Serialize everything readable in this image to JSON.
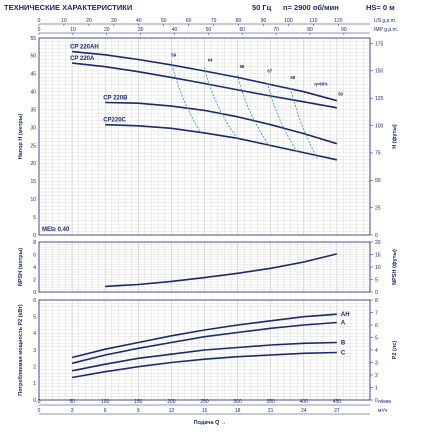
{
  "header": {
    "title": "ТЕХНИЧЕСКИЕ ХАРАКТЕРИСТИКИ",
    "freq": "50 Гц",
    "speed": "n= 2900 об/мин",
    "hs": "HS= 0 м"
  },
  "colors": {
    "curve": "#1a2a6c",
    "efficiency": "#3a9bd5",
    "grid": "#c8c8c8",
    "frame": "#1a2a6c"
  },
  "top_axes": {
    "units": [
      "л/мин"
    ],
    "scales": [
      {
        "unit": "US g.p.m.",
        "ticks": [
          "0",
          "10",
          "20",
          "30",
          "40",
          "50",
          "60",
          "70",
          "80",
          "90",
          "100",
          "110",
          "120"
        ]
      },
      {
        "unit": "IMP g.p.m.",
        "ticks": [
          "0",
          "10",
          "20",
          "30",
          "40",
          "50",
          "60",
          "70",
          "80",
          "90",
          "100"
        ]
      }
    ]
  },
  "bottom_axes": {
    "unit1": "л/мин",
    "unit2": "м³/ч",
    "xlabel": "Подача Q",
    "ticks_lmin": [
      "0",
      "50",
      "100",
      "150",
      "200",
      "250",
      "300",
      "350",
      "400",
      "450"
    ],
    "ticks_m3h": [
      "0",
      "3",
      "6",
      "9",
      "12",
      "15",
      "18",
      "21",
      "24",
      "27"
    ]
  },
  "chart_data": [
    {
      "type": "line",
      "title": "",
      "xlabel": "Подача Q",
      "ylabel": "Напор H (метры)",
      "y2label": "H (футы)",
      "xlim": [
        0,
        500
      ],
      "ylim": [
        0,
        55
      ],
      "y2lim": [
        0,
        180
      ],
      "y_ticks": [
        "0",
        "5",
        "10",
        "15",
        "20",
        "25",
        "30",
        "35",
        "40",
        "45",
        "50",
        "55"
      ],
      "y2_ticks": [
        "0",
        "25",
        "50",
        "75",
        "100",
        "125",
        "150",
        "175"
      ],
      "grid": true,
      "annotation": "MEI≥ 0.40",
      "series": [
        {
          "name": "CP 220AH",
          "x": [
            50,
            100,
            150,
            200,
            250,
            300,
            350,
            400,
            450
          ],
          "y": [
            51.2,
            50.3,
            49.0,
            47.5,
            45.8,
            44.0,
            42.0,
            40.0,
            37.5
          ]
        },
        {
          "name": "CP 220A",
          "x": [
            50,
            100,
            150,
            200,
            250,
            300,
            350,
            400,
            450
          ],
          "y": [
            48.0,
            47.0,
            45.6,
            44.0,
            42.3,
            40.5,
            38.8,
            37.2,
            35.5
          ]
        },
        {
          "name": "CP 220B",
          "x": [
            100,
            150,
            200,
            250,
            300,
            350,
            400,
            450
          ],
          "y": [
            37.0,
            36.8,
            36.0,
            34.8,
            33.0,
            30.8,
            28.3,
            25.5
          ]
        },
        {
          "name": "CP220C",
          "x": [
            100,
            150,
            200,
            250,
            300,
            350,
            400,
            450
          ],
          "y": [
            30.8,
            30.5,
            29.8,
            28.5,
            27.0,
            25.0,
            23.0,
            21.0
          ]
        }
      ],
      "efficiency_labels": [
        "59",
        "64",
        "58",
        "67",
        "58",
        "η=66%",
        "59"
      ]
    },
    {
      "type": "line",
      "title": "",
      "xlabel": "",
      "ylabel": "NPSH (метры)",
      "y2label": "NPSH (футы)",
      "xlim": [
        0,
        500
      ],
      "ylim": [
        0,
        8
      ],
      "y2lim": [
        0,
        20
      ],
      "y_ticks": [
        "0",
        "2",
        "4",
        "6",
        "8"
      ],
      "y2_ticks": [
        "0",
        "5",
        "10",
        "15",
        "20"
      ],
      "grid": true,
      "series": [
        {
          "name": "",
          "x": [
            100,
            150,
            200,
            250,
            300,
            350,
            400,
            450
          ],
          "y": [
            0.9,
            1.2,
            1.7,
            2.3,
            3.0,
            3.8,
            4.8,
            6.1
          ]
        }
      ]
    },
    {
      "type": "line",
      "title": "",
      "xlabel": "Подача Q",
      "ylabel": "Потребляемая мощность P2 (кВт)",
      "y2label": "P2 (лс)",
      "xlim": [
        0,
        500
      ],
      "ylim": [
        0,
        6
      ],
      "y2lim": [
        0,
        8
      ],
      "y_ticks": [
        "0",
        "1",
        "2",
        "3",
        "4",
        "5",
        "6"
      ],
      "y2_ticks": [
        "0",
        "1",
        "2",
        "3",
        "4",
        "5",
        "6",
        "7",
        "8"
      ],
      "grid": true,
      "series": [
        {
          "name": "AH",
          "x": [
            50,
            100,
            150,
            200,
            250,
            300,
            350,
            400,
            450
          ],
          "y": [
            2.55,
            3.05,
            3.45,
            3.85,
            4.2,
            4.5,
            4.75,
            5.0,
            5.15
          ]
        },
        {
          "name": "A",
          "x": [
            50,
            100,
            150,
            200,
            250,
            300,
            350,
            400,
            450
          ],
          "y": [
            2.2,
            2.7,
            3.1,
            3.45,
            3.8,
            4.05,
            4.3,
            4.5,
            4.65
          ]
        },
        {
          "name": "B",
          "x": [
            50,
            100,
            150,
            200,
            250,
            300,
            350,
            400,
            450
          ],
          "y": [
            1.75,
            2.15,
            2.5,
            2.75,
            3.0,
            3.15,
            3.3,
            3.4,
            3.45
          ]
        },
        {
          "name": "C",
          "x": [
            50,
            100,
            150,
            200,
            250,
            300,
            350,
            400,
            450
          ],
          "y": [
            1.35,
            1.7,
            2.0,
            2.25,
            2.45,
            2.6,
            2.7,
            2.8,
            2.85
          ]
        }
      ]
    }
  ]
}
